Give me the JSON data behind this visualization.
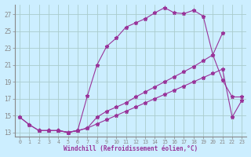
{
  "xlabel": "Windchill (Refroidissement éolien,°C)",
  "bg_color": "#cceeff",
  "grid_color": "#aacccc",
  "line_color": "#993399",
  "xlim": [
    -0.5,
    23.5
  ],
  "ylim": [
    12.5,
    28.2
  ],
  "yticks": [
    13,
    15,
    17,
    19,
    21,
    23,
    25,
    27
  ],
  "xticks": [
    0,
    1,
    2,
    3,
    4,
    5,
    6,
    7,
    8,
    9,
    10,
    11,
    12,
    13,
    14,
    15,
    16,
    17,
    18,
    19,
    20,
    21,
    22,
    23
  ],
  "line1_x": [
    0,
    1,
    2,
    3,
    4,
    5,
    6
  ],
  "line1_y": [
    14.8,
    13.9,
    13.2,
    13.2,
    13.2,
    13.0,
    13.2
  ],
  "line2_x": [
    0,
    1,
    2,
    3,
    4,
    5,
    6,
    7,
    8,
    9,
    10,
    11,
    12,
    13,
    14,
    15,
    16,
    17,
    18,
    19,
    20,
    21
  ],
  "line2_y": [
    14.8,
    13.9,
    13.2,
    13.2,
    13.2,
    13.0,
    13.2,
    17.3,
    21.0,
    23.2,
    24.2,
    25.5,
    26.0,
    26.5,
    27.2,
    27.8,
    27.2,
    27.1,
    27.5,
    26.8,
    22.2,
    24.8
  ],
  "line3_x": [
    2,
    3,
    4,
    5,
    6,
    7,
    8,
    9,
    10,
    11,
    12,
    13,
    14,
    15,
    16,
    17,
    18,
    19,
    20,
    21,
    22,
    23
  ],
  "line3_y": [
    13.2,
    13.2,
    13.2,
    13.0,
    13.2,
    13.5,
    14.8,
    15.5,
    16.0,
    16.5,
    17.2,
    17.8,
    18.4,
    19.0,
    19.6,
    20.2,
    20.8,
    21.5,
    22.2,
    19.2,
    17.2,
    17.2
  ],
  "line4_x": [
    2,
    3,
    4,
    5,
    6,
    7,
    8,
    9,
    10,
    11,
    12,
    13,
    14,
    15,
    16,
    17,
    18,
    19,
    20,
    21,
    22,
    23
  ],
  "line4_y": [
    13.2,
    13.2,
    13.2,
    13.0,
    13.2,
    13.5,
    14.0,
    14.5,
    15.0,
    15.5,
    16.0,
    16.5,
    17.0,
    17.5,
    18.0,
    18.5,
    19.0,
    19.5,
    20.0,
    20.5,
    14.8,
    16.8
  ]
}
